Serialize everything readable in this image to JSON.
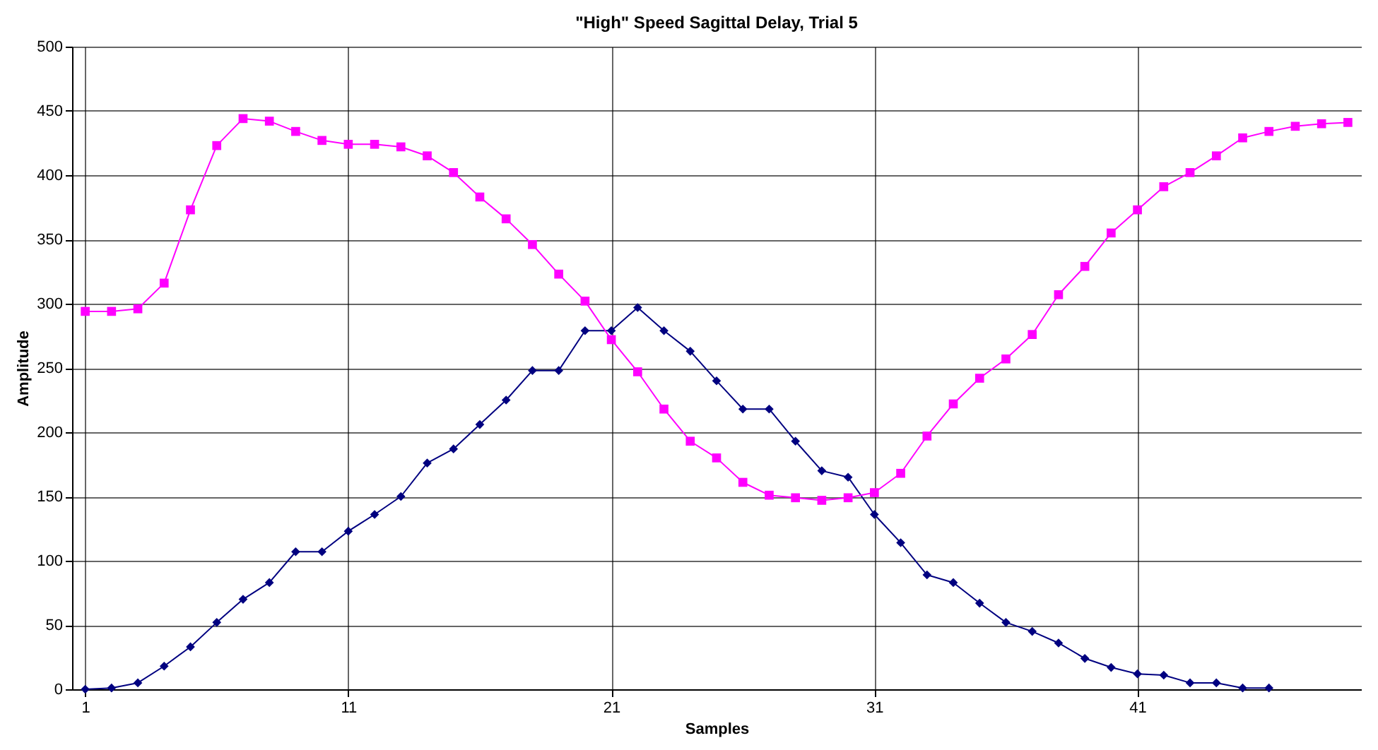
{
  "chart_data": {
    "type": "line",
    "title": "\"High\" Speed Sagittal Delay, Trial 5",
    "xlabel": "Samples",
    "ylabel": "Amplitude",
    "x": [
      1,
      2,
      3,
      4,
      5,
      6,
      7,
      8,
      9,
      10,
      11,
      12,
      13,
      14,
      15,
      16,
      17,
      18,
      19,
      20,
      21,
      22,
      23,
      24,
      25,
      26,
      27,
      28,
      29,
      30,
      31,
      32,
      33,
      34,
      35,
      36,
      37,
      38,
      39,
      40,
      41,
      42,
      43,
      44,
      45,
      46,
      47,
      48,
      49
    ],
    "xlim": [
      0.5,
      49.5
    ],
    "xticks": [
      1,
      11,
      21,
      31,
      41
    ],
    "ylim": [
      0,
      500
    ],
    "yticks": [
      0,
      50,
      100,
      150,
      200,
      250,
      300,
      350,
      400,
      450,
      500
    ],
    "grid": true,
    "line_style": "solid",
    "series": [
      {
        "color": "#000080",
        "marker": "diamond",
        "x": [
          1,
          2,
          3,
          4,
          5,
          6,
          7,
          8,
          9,
          10,
          11,
          12,
          13,
          14,
          15,
          16,
          17,
          18,
          19,
          20,
          21,
          22,
          23,
          24,
          25,
          26,
          27,
          28,
          29,
          30,
          31,
          32,
          33,
          34,
          35,
          36,
          37,
          38,
          39,
          40,
          41,
          42,
          43,
          44,
          45,
          46
        ],
        "values": [
          0,
          1,
          5,
          18,
          33,
          52,
          70,
          83,
          107,
          107,
          123,
          136,
          150,
          176,
          187,
          206,
          225,
          248,
          248,
          279,
          279,
          297,
          279,
          263,
          240,
          218,
          218,
          193,
          170,
          165,
          136,
          114,
          89,
          83,
          67,
          52,
          45,
          36,
          24,
          17,
          12,
          11,
          5,
          5,
          1,
          1
        ]
      },
      {
        "color": "#ff00ff",
        "marker": "square",
        "values": [
          294,
          294,
          296,
          316,
          373,
          423,
          444,
          442,
          434,
          427,
          424,
          424,
          422,
          415,
          402,
          383,
          366,
          346,
          323,
          302,
          272,
          247,
          218,
          193,
          180,
          161,
          151,
          149,
          147,
          149,
          153,
          168,
          197,
          222,
          242,
          257,
          276,
          307,
          329,
          355,
          373,
          391,
          402,
          415,
          429,
          434,
          438,
          440,
          441
        ]
      }
    ]
  }
}
